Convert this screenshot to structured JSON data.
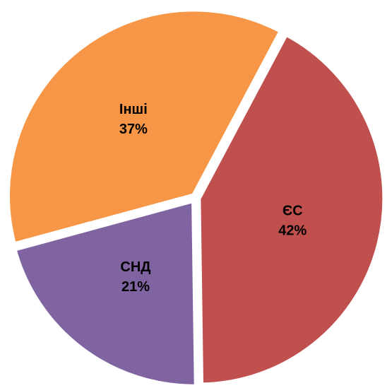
{
  "chart_data": {
    "type": "pie",
    "categories": [
      "ЄС",
      "СНД",
      "Інші"
    ],
    "values": [
      42,
      21,
      37
    ],
    "value_labels": [
      "42%",
      "21%",
      "37%"
    ],
    "colors": [
      "#c0504d",
      "#8064a2",
      "#f79646"
    ]
  }
}
